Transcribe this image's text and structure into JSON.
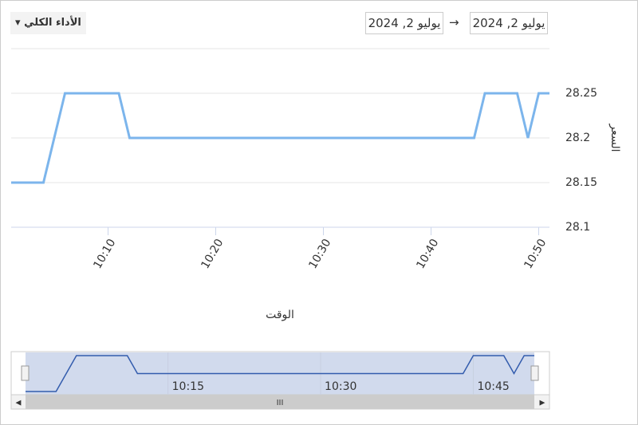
{
  "toolbar": {
    "dropdown": "الأداء الكلي",
    "from_date": "يوليو 2, 2024",
    "to_date": "يوليو 2, 2024",
    "arrow": "→"
  },
  "chart_data": {
    "type": "line",
    "y_axis_title": "السعر",
    "x_axis_title": "الوقت",
    "x": [
      "10:01",
      "10:04",
      "10:06",
      "10:11",
      "10:12",
      "10:44",
      "10:45",
      "10:48",
      "10:49",
      "10:50",
      "10:51"
    ],
    "series": [
      {
        "color": "#7cb5ec",
        "values": [
          28.15,
          28.15,
          28.25,
          28.25,
          28.2,
          28.2,
          28.25,
          28.25,
          28.2,
          28.25,
          28.25
        ]
      }
    ],
    "xlim": [
      "10:01",
      "10:51"
    ],
    "xticks": [
      "10:10",
      "10:20",
      "10:30",
      "10:40",
      "10:50"
    ],
    "ylim": [
      28.1,
      28.3
    ],
    "yticks": [
      28.1,
      28.15,
      28.2,
      28.25
    ],
    "grid": true,
    "navigator_xticks": [
      "10:15",
      "10:30",
      "10:45"
    ]
  }
}
